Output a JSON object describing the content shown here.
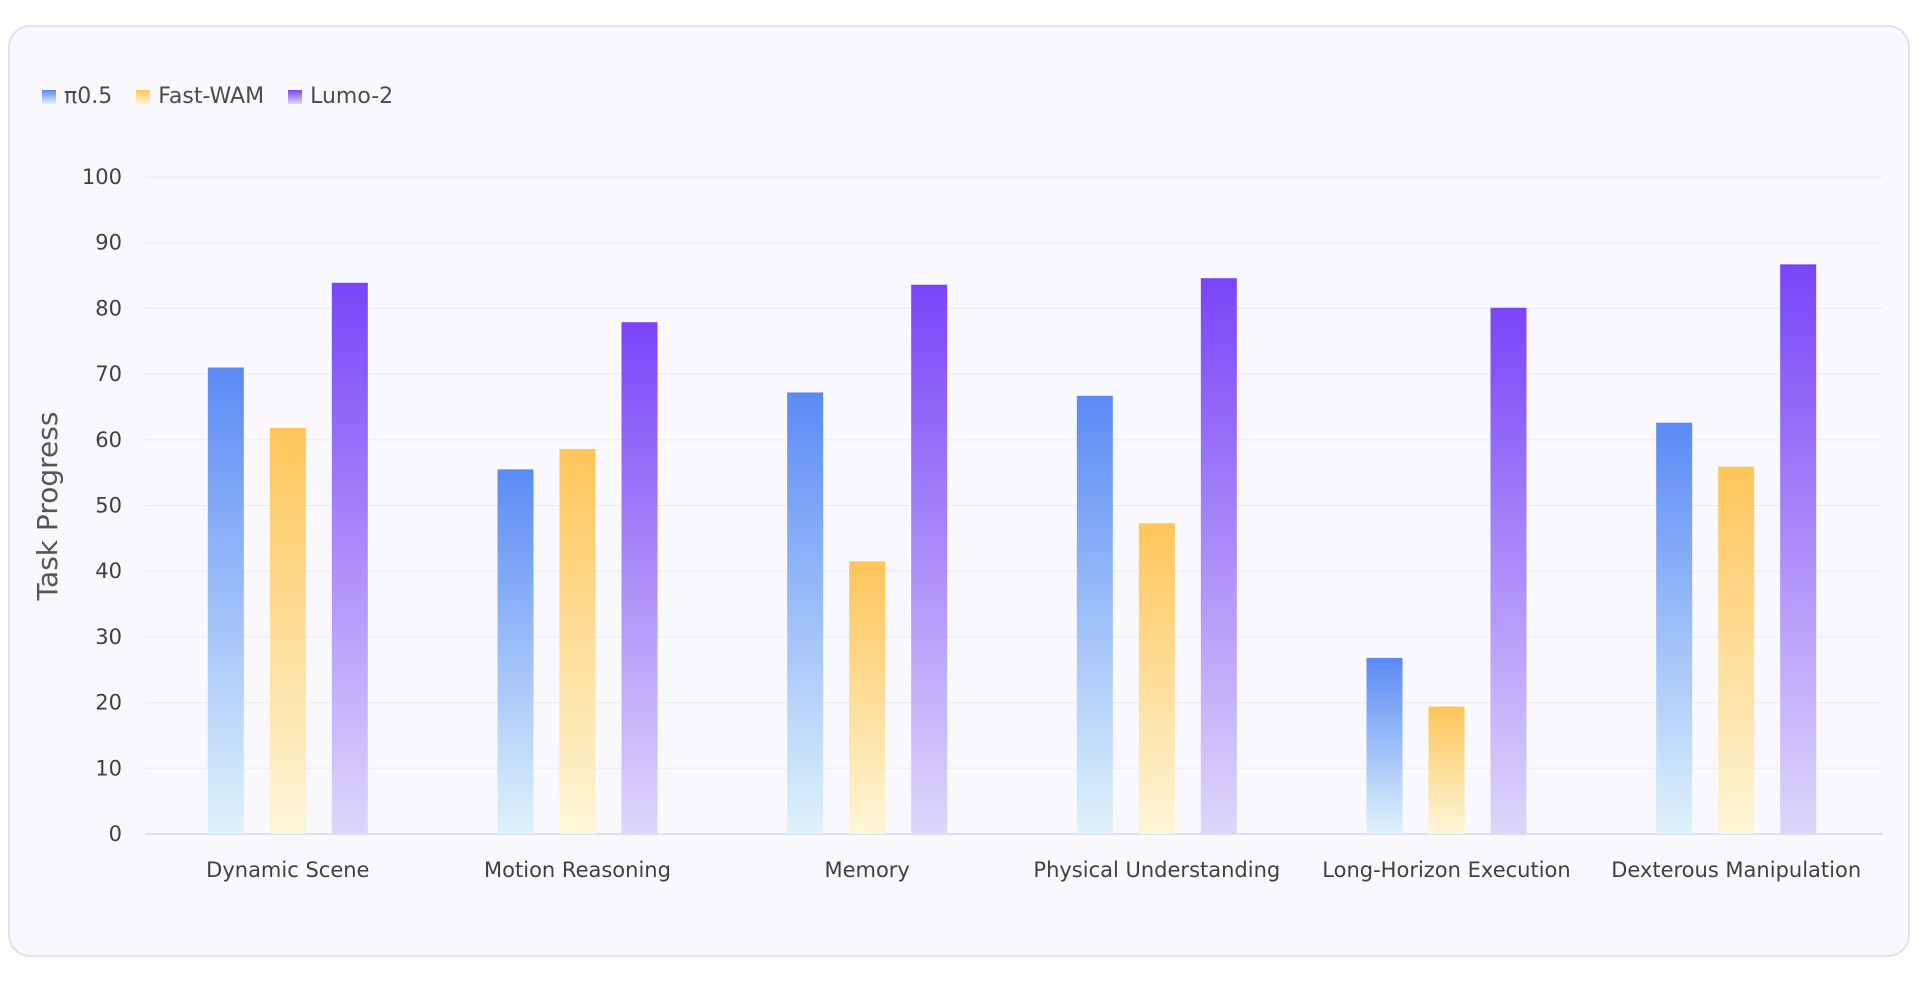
{
  "chart_data": {
    "type": "bar",
    "title": "",
    "xlabel": "",
    "ylabel": "Task Progress",
    "ylim": [
      0,
      100
    ],
    "yticks": [
      0,
      10,
      20,
      30,
      40,
      50,
      60,
      70,
      80,
      90,
      100
    ],
    "grid": true,
    "legend_position": "top-left",
    "categories": [
      "Dynamic Scene",
      "Motion Reasoning",
      "Memory",
      "Physical Understanding",
      "Long-Horizon Execution",
      "Dexterous Manipulation"
    ],
    "series": [
      {
        "name": "π0.5",
        "key": "pi",
        "values": [
          71.0,
          55.5,
          67.2,
          66.7,
          26.8,
          62.6
        ]
      },
      {
        "name": "Fast-WAM",
        "key": "fast",
        "values": [
          61.8,
          58.6,
          41.5,
          47.3,
          19.4,
          55.9
        ]
      },
      {
        "name": "Lumo-2",
        "key": "lumo",
        "values": [
          83.9,
          77.9,
          83.6,
          84.6,
          80.1,
          86.7
        ]
      }
    ],
    "colors": {
      "pi": [
        "#5b8af5",
        "#dff3fb"
      ],
      "fast": [
        "#fec55a",
        "#fdf6d8"
      ],
      "lumo": [
        "#7a44f8",
        "#ddd7fa"
      ],
      "grid": "#ebeaf3",
      "axis": "#d6d5e6"
    }
  }
}
